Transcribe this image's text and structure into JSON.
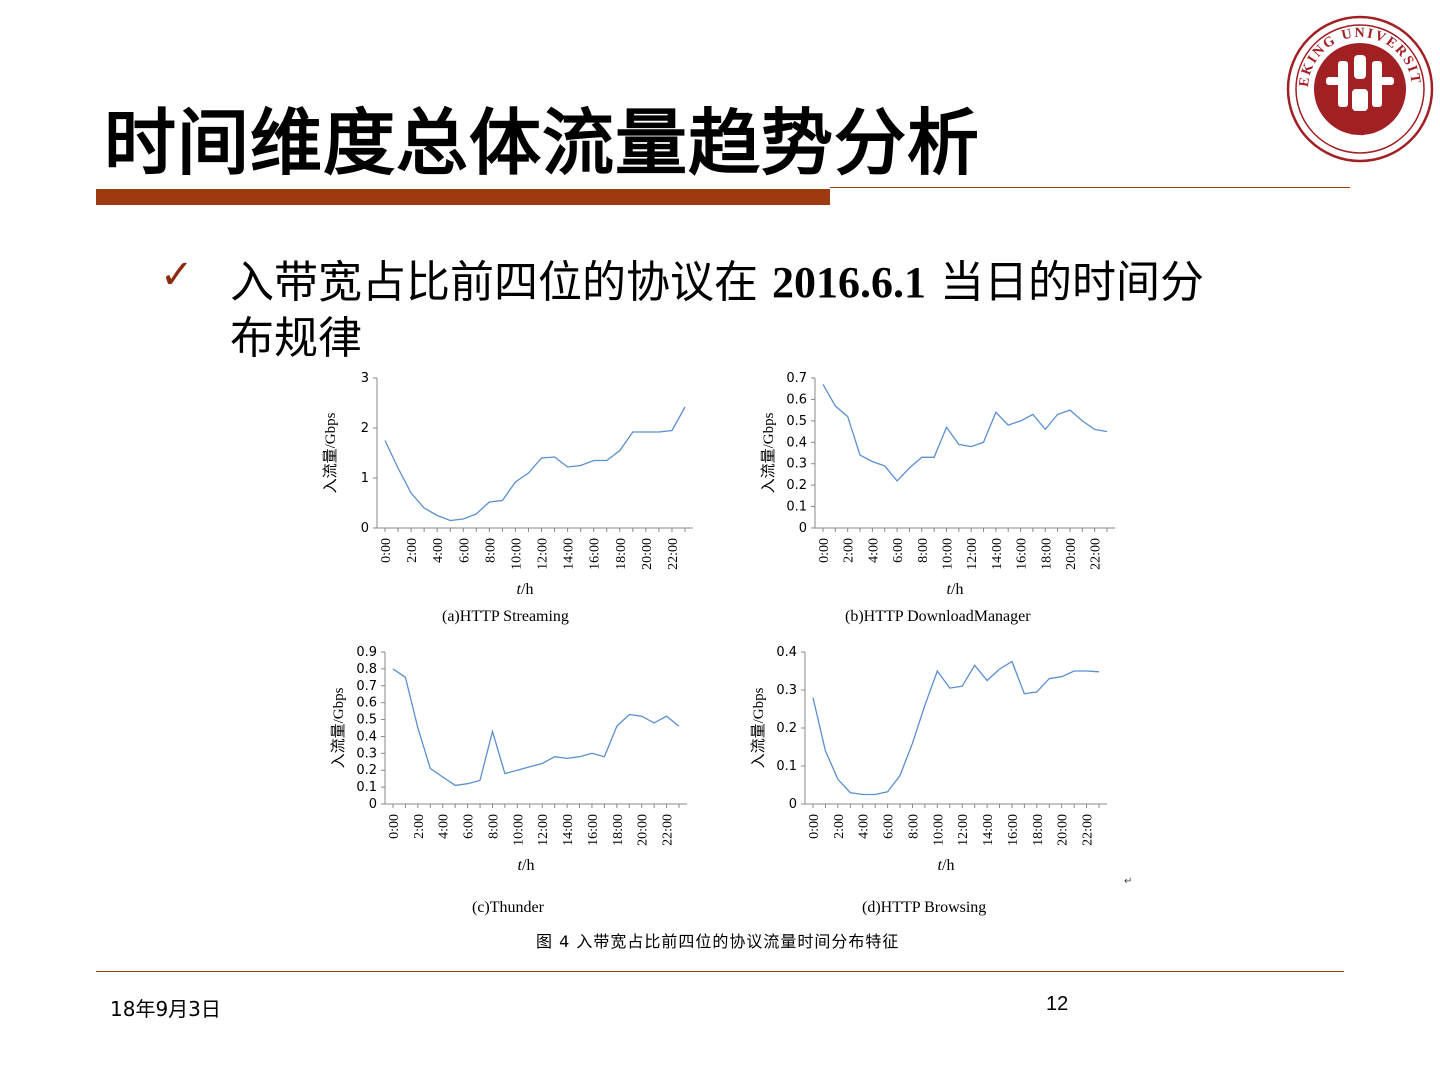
{
  "slide": {
    "title": "时间维度总体流量趋势分析",
    "bullet_prefix": "入带宽占比前四位的协议在 ",
    "bullet_bold": "2016.6.1",
    "bullet_suffix": " 当日的时间分布规律",
    "check_icon": "✓",
    "figure_caption": "图 4  入带宽占比前四位的协议流量时间分布特征",
    "footer_date": "18年9月3日",
    "page_number": "12",
    "logo_text_top": "PEKING UNIVERSITY",
    "logo_text_bottom": "1898",
    "accent_color": "#9e3a0f",
    "line_color": "#5b8fd0"
  },
  "chart_data": [
    {
      "type": "line",
      "caption": "(a)HTTP Streaming",
      "ylabel": "入流量/Gbps",
      "xlabel": "t/h",
      "ylim": [
        0,
        3
      ],
      "yticks": [
        "0",
        "1",
        "2",
        "3"
      ],
      "xticks": [
        "0:00",
        "2:00",
        "4:00",
        "6:00",
        "8:00",
        "10:00",
        "12:00",
        "14:00",
        "16:00",
        "18:00",
        "20:00",
        "22:00"
      ],
      "x": [
        0,
        1,
        2,
        3,
        4,
        5,
        6,
        7,
        8,
        9,
        10,
        11,
        12,
        13,
        14,
        15,
        16,
        17,
        18,
        19,
        20,
        21,
        22,
        23
      ],
      "series": [
        {
          "values": [
            1.75,
            1.2,
            0.7,
            0.4,
            0.25,
            0.15,
            0.18,
            0.28,
            0.52,
            0.55,
            0.92,
            1.1,
            1.4,
            1.42,
            1.22,
            1.25,
            1.35,
            1.35,
            1.55,
            1.92,
            1.92,
            1.92,
            1.95,
            2.42
          ]
        }
      ]
    },
    {
      "type": "line",
      "caption": "(b)HTTP DownloadManager",
      "ylabel": "入流量/Gbps",
      "xlabel": "t/h",
      "ylim": [
        0,
        0.7
      ],
      "yticks": [
        "0",
        "0.1",
        "0.2",
        "0.3",
        "0.4",
        "0.5",
        "0.6",
        "0.7"
      ],
      "xticks": [
        "0:00",
        "2:00",
        "4:00",
        "6:00",
        "8:00",
        "10:00",
        "12:00",
        "14:00",
        "16:00",
        "18:00",
        "20:00",
        "22:00"
      ],
      "x": [
        0,
        1,
        2,
        3,
        4,
        5,
        6,
        7,
        8,
        9,
        10,
        11,
        12,
        13,
        14,
        15,
        16,
        17,
        18,
        19,
        20,
        21,
        22,
        23
      ],
      "series": [
        {
          "values": [
            0.67,
            0.57,
            0.52,
            0.34,
            0.31,
            0.29,
            0.22,
            0.28,
            0.33,
            0.33,
            0.47,
            0.39,
            0.38,
            0.4,
            0.54,
            0.48,
            0.5,
            0.53,
            0.46,
            0.53,
            0.55,
            0.5,
            0.46,
            0.45
          ]
        }
      ]
    },
    {
      "type": "line",
      "caption": "(c)Thunder",
      "ylabel": "入流量/Gbps",
      "xlabel": "t/h",
      "ylim": [
        0,
        0.9
      ],
      "yticks": [
        "0",
        "0.1",
        "0.2",
        "0.3",
        "0.4",
        "0.5",
        "0.6",
        "0.7",
        "0.8",
        "0.9"
      ],
      "xticks": [
        "0:00",
        "2:00",
        "4:00",
        "6:00",
        "8:00",
        "10:00",
        "12:00",
        "14:00",
        "16:00",
        "18:00",
        "20:00",
        "22:00"
      ],
      "x": [
        0,
        1,
        2,
        3,
        4,
        5,
        6,
        7,
        8,
        9,
        10,
        11,
        12,
        13,
        14,
        15,
        16,
        17,
        18,
        19,
        20,
        21,
        22,
        23
      ],
      "series": [
        {
          "values": [
            0.8,
            0.75,
            0.45,
            0.21,
            0.16,
            0.11,
            0.12,
            0.14,
            0.43,
            0.18,
            0.2,
            0.22,
            0.24,
            0.28,
            0.27,
            0.28,
            0.3,
            0.28,
            0.46,
            0.53,
            0.52,
            0.48,
            0.52,
            0.46
          ]
        }
      ]
    },
    {
      "type": "line",
      "caption": "(d)HTTP Browsing",
      "ylabel": "入流量/Gbps",
      "xlabel": "t/h",
      "ylim": [
        0,
        0.4
      ],
      "yticks": [
        "0",
        "0.1",
        "0.2",
        "0.3",
        "0.4"
      ],
      "xticks": [
        "0:00",
        "2:00",
        "4:00",
        "6:00",
        "8:00",
        "10:00",
        "12:00",
        "14:00",
        "16:00",
        "18:00",
        "20:00",
        "22:00"
      ],
      "x": [
        0,
        1,
        2,
        3,
        4,
        5,
        6,
        7,
        8,
        9,
        10,
        11,
        12,
        13,
        14,
        15,
        16,
        17,
        18,
        19,
        20,
        21,
        22,
        23
      ],
      "series": [
        {
          "values": [
            0.28,
            0.14,
            0.065,
            0.03,
            0.025,
            0.025,
            0.032,
            0.075,
            0.16,
            0.26,
            0.35,
            0.305,
            0.31,
            0.365,
            0.325,
            0.355,
            0.375,
            0.29,
            0.295,
            0.33,
            0.335,
            0.35,
            0.35,
            0.348
          ]
        }
      ]
    }
  ]
}
